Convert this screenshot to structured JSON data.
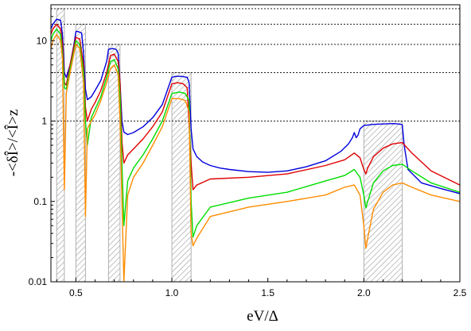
{
  "chart_data": {
    "type": "line",
    "xlabel": "eV/Δ",
    "ylabel": "-<δÎ>/<Î>z",
    "xlim": [
      0.37,
      2.5
    ],
    "ylim": [
      0.01,
      28
    ],
    "yscale": "log",
    "grid": "horizontal dotted reference lines",
    "x_ticks": [
      0.5,
      1.0,
      1.5,
      2.0,
      2.5
    ],
    "x_tick_labels": [
      "0.5",
      "1.0",
      "1.5",
      "2.0",
      "2.5"
    ],
    "y_ticks": [
      0.01,
      0.1,
      1,
      10
    ],
    "y_tick_labels": [
      "0.01",
      "0.1",
      "1",
      "10"
    ],
    "reference_lines": [
      1,
      4,
      9,
      16,
      25
    ],
    "shaded_bands": [
      {
        "x0": 0.4,
        "x1": 0.44,
        "top": 25
      },
      {
        "x0": 0.5,
        "x1": 0.55,
        "top": 16
      },
      {
        "x0": 0.67,
        "x1": 0.73,
        "top": 9
      },
      {
        "x0": 1.0,
        "x1": 1.1,
        "top": 4
      },
      {
        "x0": 2.0,
        "x1": 2.2,
        "top": 1
      }
    ],
    "series": [
      {
        "color": "#0000dd",
        "x": [
          0.37,
          0.38,
          0.4,
          0.42,
          0.43,
          0.44,
          0.45,
          0.47,
          0.49,
          0.5,
          0.51,
          0.53,
          0.54,
          0.55,
          0.56,
          0.58,
          0.6,
          0.63,
          0.66,
          0.67,
          0.69,
          0.71,
          0.72,
          0.73,
          0.74,
          0.75,
          0.77,
          0.8,
          0.85,
          0.9,
          0.95,
          1.0,
          1.02,
          1.05,
          1.08,
          1.09,
          1.1,
          1.11,
          1.13,
          1.16,
          1.2,
          1.25,
          1.3,
          1.4,
          1.5,
          1.6,
          1.7,
          1.8,
          1.88,
          1.92,
          1.94,
          1.95,
          1.96,
          1.97,
          1.98,
          2.0,
          2.05,
          2.1,
          2.15,
          2.18,
          2.2,
          2.21,
          2.23,
          2.3,
          2.4,
          2.5
        ],
        "y": [
          14,
          16,
          18.5,
          18,
          12,
          4.0,
          3.5,
          5.0,
          9.0,
          13,
          13,
          12.5,
          7.0,
          2.5,
          1.85,
          2.0,
          2.4,
          3.2,
          5.5,
          7.8,
          8.0,
          7.8,
          7.0,
          3.0,
          1.0,
          0.73,
          0.68,
          0.72,
          0.85,
          1.1,
          1.6,
          3.5,
          3.6,
          3.6,
          3.5,
          3.0,
          0.8,
          0.45,
          0.36,
          0.31,
          0.28,
          0.26,
          0.25,
          0.235,
          0.23,
          0.24,
          0.27,
          0.32,
          0.42,
          0.52,
          0.62,
          0.72,
          0.62,
          0.67,
          0.8,
          0.88,
          0.91,
          0.92,
          0.93,
          0.92,
          0.9,
          0.5,
          0.25,
          0.17,
          0.145,
          0.125
        ]
      },
      {
        "color": "#e00000",
        "x": [
          0.37,
          0.38,
          0.4,
          0.42,
          0.43,
          0.44,
          0.45,
          0.47,
          0.49,
          0.5,
          0.52,
          0.54,
          0.55,
          0.56,
          0.58,
          0.6,
          0.63,
          0.66,
          0.68,
          0.7,
          0.72,
          0.73,
          0.74,
          0.75,
          0.77,
          0.8,
          0.85,
          0.9,
          0.95,
          1.0,
          1.03,
          1.06,
          1.08,
          1.1,
          1.11,
          1.13,
          1.2,
          1.4,
          1.6,
          1.8,
          1.9,
          1.95,
          1.98,
          2.0,
          2.01,
          2.02,
          2.05,
          2.1,
          2.15,
          2.2,
          2.25,
          2.35,
          2.5
        ],
        "y": [
          12,
          14,
          16,
          14,
          9,
          3.0,
          2.8,
          5.0,
          8.5,
          11,
          10.5,
          5.0,
          1.5,
          1.0,
          1.4,
          1.7,
          2.4,
          4.0,
          6.5,
          6.8,
          5.5,
          3.0,
          0.55,
          0.3,
          0.38,
          0.45,
          0.6,
          0.85,
          1.3,
          2.9,
          3.0,
          2.9,
          2.6,
          0.3,
          0.14,
          0.16,
          0.19,
          0.2,
          0.22,
          0.28,
          0.33,
          0.4,
          0.35,
          0.25,
          0.22,
          0.26,
          0.36,
          0.46,
          0.52,
          0.54,
          0.4,
          0.24,
          0.16
        ]
      },
      {
        "color": "#00dd00",
        "x": [
          0.37,
          0.38,
          0.4,
          0.42,
          0.43,
          0.44,
          0.45,
          0.47,
          0.49,
          0.5,
          0.52,
          0.54,
          0.55,
          0.56,
          0.58,
          0.6,
          0.63,
          0.66,
          0.68,
          0.7,
          0.72,
          0.73,
          0.74,
          0.75,
          0.77,
          0.8,
          0.85,
          0.9,
          0.95,
          1.0,
          1.04,
          1.07,
          1.09,
          1.1,
          1.11,
          1.13,
          1.2,
          1.4,
          1.6,
          1.8,
          1.9,
          1.95,
          1.98,
          2.0,
          2.01,
          2.02,
          2.05,
          2.1,
          2.15,
          2.2,
          2.25,
          2.35,
          2.5
        ],
        "y": [
          10,
          12,
          14,
          12,
          7.0,
          2.6,
          2.5,
          4.5,
          7.5,
          10,
          9.0,
          4.0,
          1.0,
          0.5,
          1.1,
          1.4,
          2.0,
          3.5,
          5.5,
          5.8,
          4.5,
          2.0,
          0.3,
          0.05,
          0.18,
          0.26,
          0.38,
          0.6,
          1.0,
          2.2,
          2.3,
          2.2,
          1.8,
          0.1,
          0.036,
          0.05,
          0.085,
          0.11,
          0.13,
          0.18,
          0.21,
          0.25,
          0.2,
          0.12,
          0.083,
          0.1,
          0.17,
          0.24,
          0.28,
          0.29,
          0.24,
          0.17,
          0.13
        ]
      },
      {
        "color": "#ff8c00",
        "x": [
          0.37,
          0.38,
          0.4,
          0.42,
          0.43,
          0.44,
          0.45,
          0.47,
          0.49,
          0.5,
          0.52,
          0.54,
          0.55,
          0.56,
          0.58,
          0.6,
          0.63,
          0.66,
          0.68,
          0.7,
          0.72,
          0.73,
          0.74,
          0.75,
          0.77,
          0.8,
          0.85,
          0.9,
          0.95,
          1.0,
          1.04,
          1.07,
          1.09,
          1.1,
          1.11,
          1.13,
          1.2,
          1.4,
          1.6,
          1.8,
          1.9,
          1.95,
          1.98,
          2.0,
          2.01,
          2.02,
          2.05,
          2.1,
          2.15,
          2.2,
          2.25,
          2.35,
          2.5
        ],
        "y": [
          8,
          10,
          12,
          10,
          6.0,
          0.14,
          2.2,
          4.0,
          7.0,
          9.0,
          8.0,
          3.0,
          0.065,
          0.8,
          1.0,
          1.2,
          1.8,
          3.0,
          4.5,
          5.0,
          3.8,
          1.0,
          0.1,
          0.01,
          0.12,
          0.2,
          0.3,
          0.5,
          0.85,
          1.9,
          1.9,
          1.8,
          1.3,
          0.04,
          0.028,
          0.035,
          0.065,
          0.085,
          0.1,
          0.12,
          0.15,
          0.16,
          0.12,
          0.05,
          0.026,
          0.035,
          0.08,
          0.13,
          0.16,
          0.17,
          0.15,
          0.12,
          0.1
        ]
      }
    ]
  }
}
